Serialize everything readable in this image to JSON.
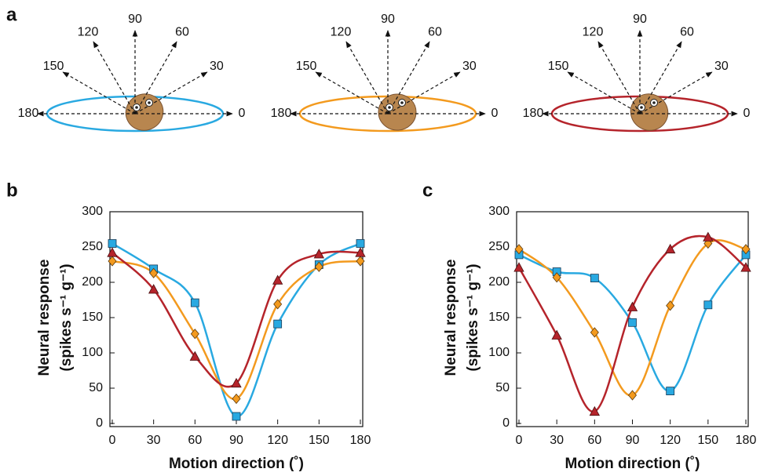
{
  "panel_labels": [
    "a",
    "b",
    "c"
  ],
  "diagram": {
    "directions": [
      0,
      30,
      60,
      90,
      120,
      150,
      180
    ]
  },
  "chart_data": [
    {
      "type": "line",
      "xlabel": "Motion direction (˚)",
      "ylabel": [
        "Neural response",
        "(spikes s⁻¹ g⁻¹)"
      ],
      "x": [
        0,
        30,
        60,
        90,
        120,
        150,
        180
      ],
      "xlim": [
        0,
        180
      ],
      "xticks": [
        0,
        30,
        60,
        90,
        120,
        150,
        180
      ],
      "ylim": [
        0,
        300
      ],
      "yticks": [
        0,
        50,
        100,
        150,
        200,
        250,
        300
      ],
      "series": [
        {
          "color": "#29a9e1",
          "marker": "square",
          "values": [
            255,
            219,
            171,
            10,
            141,
            225,
            255
          ]
        },
        {
          "color": "#f39a1e",
          "marker": "diamond",
          "values": [
            230,
            213,
            127,
            35,
            169,
            222,
            230
          ]
        },
        {
          "color": "#b5242b",
          "marker": "triangle",
          "values": [
            242,
            190,
            95,
            57,
            203,
            240,
            242
          ]
        }
      ]
    },
    {
      "type": "line",
      "xlabel": "Motion direction (˚)",
      "ylabel": [
        "Neural response",
        "(spikes s⁻¹ g⁻¹)"
      ],
      "x": [
        0,
        30,
        60,
        90,
        120,
        150,
        180
      ],
      "xlim": [
        0,
        180
      ],
      "xticks": [
        0,
        30,
        60,
        90,
        120,
        150,
        180
      ],
      "ylim": [
        0,
        300
      ],
      "yticks": [
        0,
        50,
        100,
        150,
        200,
        250,
        300
      ],
      "series": [
        {
          "color": "#29a9e1",
          "marker": "square",
          "values": [
            239,
            215,
            206,
            143,
            46,
            168,
            239
          ]
        },
        {
          "color": "#f39a1e",
          "marker": "diamond",
          "values": [
            247,
            207,
            129,
            40,
            167,
            255,
            247
          ]
        },
        {
          "color": "#b5242b",
          "marker": "triangle",
          "values": [
            221,
            125,
            17,
            165,
            247,
            264,
            221
          ]
        }
      ]
    }
  ]
}
